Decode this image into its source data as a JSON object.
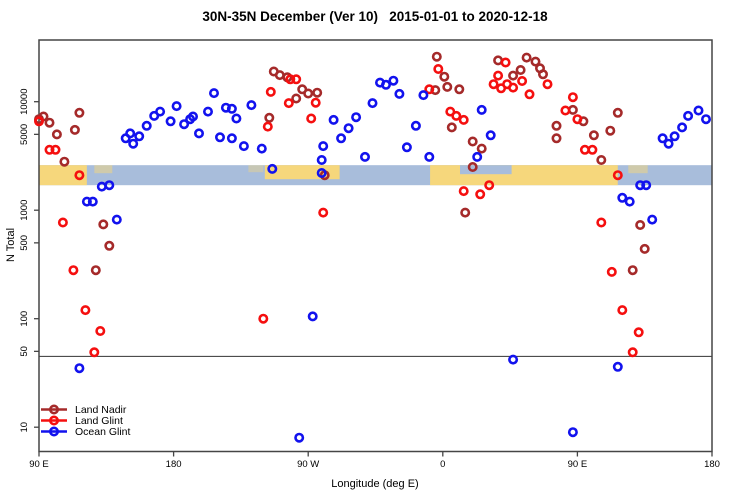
{
  "chart_data": {
    "type": "scatter",
    "title": "30N-35N December (Ver 10)   2015-01-01 to 2020-12-18",
    "xlabel": "Longitude (deg E)",
    "ylabel": "N Total",
    "x_axis": {
      "range_deg": [
        90,
        540
      ],
      "ticks": [
        {
          "deg": 90,
          "label": "90 E"
        },
        {
          "deg": 180,
          "label": "180"
        },
        {
          "deg": 270,
          "label": "90 W"
        },
        {
          "deg": 360,
          "label": "0"
        },
        {
          "deg": 450,
          "label": "90 E"
        },
        {
          "deg": 540,
          "label": "180"
        }
      ]
    },
    "y_axis": {
      "scale": "log",
      "range": [
        6,
        37000
      ],
      "ticks": [
        10,
        50,
        100,
        500,
        1000,
        5000,
        10000
      ],
      "tick_labels": [
        "10",
        "50",
        "100",
        "500",
        "1000",
        "5000",
        "10000"
      ]
    },
    "reference_line_value": 45,
    "map_strip": {
      "comment": "land/ocean world strip drawn across the panel",
      "value_top": 2600,
      "value_bottom": 1700,
      "ocean_color": "#a8bddb",
      "land_color": "#f6d77c",
      "land_segments": [
        {
          "from": 90,
          "to": 122,
          "top": 0,
          "bottom": 1,
          "opacity": 1
        },
        {
          "from": 127,
          "to": 139,
          "top": 0,
          "bottom": 0.4,
          "opacity": 0.5
        },
        {
          "from": 230,
          "to": 240,
          "top": 0,
          "bottom": 0.35,
          "opacity": 0.4
        },
        {
          "from": 241,
          "to": 291,
          "top": 0,
          "bottom": 0.7,
          "opacity": 1
        },
        {
          "from": 351.5,
          "to": 477,
          "top": 0,
          "bottom": 1,
          "opacity": 1
        },
        {
          "from": 484,
          "to": 497,
          "top": 0,
          "bottom": 0.4,
          "opacity": 0.5
        }
      ],
      "ocean_patches_over_land": [
        {
          "from": 371.5,
          "to": 406,
          "top": 0,
          "bottom": 0.45
        }
      ]
    },
    "series": [
      {
        "name": "Land Nadir",
        "color": "#A52A2A",
        "points": [
          [
            90,
            6900
          ],
          [
            93,
            7300
          ],
          [
            97,
            6400
          ],
          [
            102,
            5000
          ],
          [
            107,
            2800
          ],
          [
            114,
            5500
          ],
          [
            117,
            7900
          ],
          [
            128,
            280
          ],
          [
            133,
            740
          ],
          [
            137,
            470
          ],
          [
            244,
            7100
          ],
          [
            247,
            19000
          ],
          [
            251,
            17600
          ],
          [
            256,
            16800
          ],
          [
            262,
            10700
          ],
          [
            266,
            13000
          ],
          [
            270,
            11900
          ],
          [
            276,
            12100
          ],
          [
            281,
            2100
          ],
          [
            355,
            12800
          ],
          [
            356,
            26000
          ],
          [
            361,
            17000
          ],
          [
            363,
            13700
          ],
          [
            366,
            5800
          ],
          [
            371,
            13000
          ],
          [
            375,
            950
          ],
          [
            380,
            4300
          ],
          [
            380,
            2500
          ],
          [
            386,
            3700
          ],
          [
            397,
            24000
          ],
          [
            407,
            17400
          ],
          [
            412,
            19600
          ],
          [
            416,
            25500
          ],
          [
            422,
            23400
          ],
          [
            425,
            20300
          ],
          [
            427,
            17900
          ],
          [
            436,
            6000
          ],
          [
            436,
            4600
          ],
          [
            447,
            8400
          ],
          [
            454,
            6600
          ],
          [
            461,
            4900
          ],
          [
            466,
            2900
          ],
          [
            472,
            5400
          ],
          [
            477,
            7900
          ],
          [
            487,
            280
          ],
          [
            492,
            730
          ],
          [
            495,
            440
          ]
        ]
      },
      {
        "name": "Land Glint",
        "color": "#F50F0F",
        "points": [
          [
            90,
            6600
          ],
          [
            97,
            3600
          ],
          [
            101,
            3600
          ],
          [
            106,
            770
          ],
          [
            113,
            280
          ],
          [
            117,
            2100
          ],
          [
            121,
            120
          ],
          [
            127,
            49
          ],
          [
            131,
            77
          ],
          [
            240,
            100
          ],
          [
            243,
            5900
          ],
          [
            245,
            12300
          ],
          [
            257,
            9700
          ],
          [
            258,
            16100
          ],
          [
            262,
            16100
          ],
          [
            272,
            7000
          ],
          [
            275,
            9800
          ],
          [
            280,
            950
          ],
          [
            351,
            13000
          ],
          [
            357,
            20000
          ],
          [
            365,
            8100
          ],
          [
            369,
            7400
          ],
          [
            374,
            6800
          ],
          [
            374,
            1500
          ],
          [
            385,
            1400
          ],
          [
            391,
            1700
          ],
          [
            394,
            14500
          ],
          [
            397,
            17400
          ],
          [
            399,
            13300
          ],
          [
            402,
            23000
          ],
          [
            403,
            14500
          ],
          [
            407,
            13500
          ],
          [
            413,
            15500
          ],
          [
            418,
            11700
          ],
          [
            430,
            14500
          ],
          [
            442,
            8300
          ],
          [
            447,
            11000
          ],
          [
            450,
            6900
          ],
          [
            455,
            3600
          ],
          [
            460,
            3600
          ],
          [
            477,
            2100
          ],
          [
            466,
            770
          ],
          [
            473,
            270
          ],
          [
            480,
            120
          ],
          [
            487,
            49
          ],
          [
            491,
            75
          ]
        ]
      },
      {
        "name": "Ocean Glint",
        "color": "#1212EE",
        "points": [
          [
            117,
            35
          ],
          [
            122,
            1200
          ],
          [
            126,
            1200
          ],
          [
            132,
            1650
          ],
          [
            137,
            1700
          ],
          [
            142,
            820
          ],
          [
            148,
            4600
          ],
          [
            151,
            5100
          ],
          [
            153,
            4100
          ],
          [
            157,
            4800
          ],
          [
            162,
            6000
          ],
          [
            167,
            7400
          ],
          [
            171,
            8100
          ],
          [
            178,
            6600
          ],
          [
            182,
            9100
          ],
          [
            187,
            6200
          ],
          [
            191,
            6900
          ],
          [
            193,
            7300
          ],
          [
            197,
            5100
          ],
          [
            203,
            8100
          ],
          [
            207,
            12000
          ],
          [
            211,
            4700
          ],
          [
            215,
            8800
          ],
          [
            219,
            8600
          ],
          [
            219,
            4600
          ],
          [
            222,
            7000
          ],
          [
            227,
            3900
          ],
          [
            232,
            9300
          ],
          [
            239,
            3700
          ],
          [
            246,
            2400
          ],
          [
            264,
            8
          ],
          [
            273,
            105
          ],
          [
            279,
            2900
          ],
          [
            279,
            2200
          ],
          [
            280,
            3900
          ],
          [
            287,
            6800
          ],
          [
            292,
            4600
          ],
          [
            297,
            5700
          ],
          [
            302,
            7200
          ],
          [
            308,
            3100
          ],
          [
            313,
            9700
          ],
          [
            318,
            15000
          ],
          [
            322,
            14300
          ],
          [
            327,
            15600
          ],
          [
            331,
            11800
          ],
          [
            336,
            3800
          ],
          [
            342,
            6000
          ],
          [
            347,
            11500
          ],
          [
            351,
            3100
          ],
          [
            383,
            3100
          ],
          [
            386,
            8400
          ],
          [
            392,
            4900
          ],
          [
            407,
            42
          ],
          [
            447,
            9
          ],
          [
            477,
            36
          ],
          [
            480,
            1300
          ],
          [
            485,
            1200
          ],
          [
            492,
            1700
          ],
          [
            496,
            1700
          ],
          [
            500,
            820
          ],
          [
            507,
            4600
          ],
          [
            511,
            4100
          ],
          [
            515,
            4800
          ],
          [
            520,
            5800
          ],
          [
            524,
            7400
          ],
          [
            531,
            8300
          ],
          [
            536,
            6900
          ]
        ]
      }
    ],
    "legend": {
      "position": "bottom-left",
      "entries": [
        "Land Nadir",
        "Land Glint",
        "Ocean Glint"
      ]
    },
    "frame_color": "#454545"
  }
}
